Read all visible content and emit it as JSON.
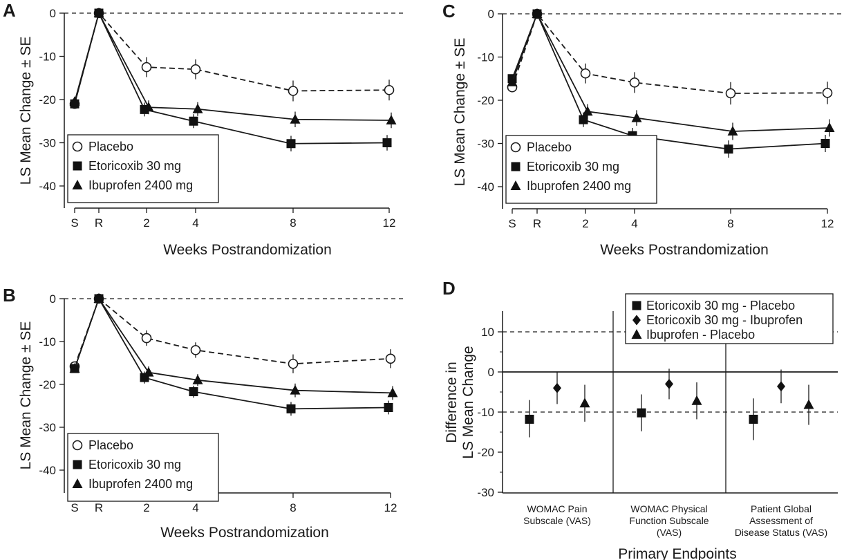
{
  "chart_data": [
    {
      "panel": "A",
      "type": "line",
      "ylabel": "LS Mean Change ± SE",
      "xlabel": "Weeks Postrandomization",
      "ylim": [
        -45,
        0
      ],
      "yticks": [
        0,
        -10,
        -20,
        -30,
        -40
      ],
      "xticks": [
        "S",
        "R",
        "2",
        "4",
        "8",
        "12"
      ],
      "reference_line": 0,
      "legend_position": "bottom-left",
      "series": [
        {
          "name": "Placebo",
          "marker": "open-circle",
          "dash": "dashed",
          "x": [
            "S",
            "R",
            "2",
            "4",
            "8",
            "12"
          ],
          "values": [
            -21,
            0,
            -12.5,
            -13,
            -18,
            -17.8
          ],
          "se": [
            0,
            0,
            2.3,
            2.3,
            2.4,
            2.4
          ]
        },
        {
          "name": "Etoricoxib 30 mg",
          "marker": "square",
          "dash": "solid",
          "x": [
            "S",
            "R",
            "2",
            "4",
            "8",
            "12"
          ],
          "values": [
            -21,
            0,
            -22.3,
            -25,
            -30.2,
            -30
          ],
          "se": [
            0,
            0,
            1.6,
            1.6,
            1.8,
            1.8
          ]
        },
        {
          "name": "Ibuprofen 2400 mg",
          "marker": "triangle",
          "dash": "solid",
          "x": [
            "S",
            "R",
            "2",
            "4",
            "8",
            "12"
          ],
          "values": [
            -20.5,
            0,
            -21.8,
            -22.2,
            -24.6,
            -24.8
          ],
          "se": [
            0,
            0,
            1.6,
            1.6,
            1.8,
            1.8
          ]
        }
      ]
    },
    {
      "panel": "B",
      "type": "line",
      "ylabel": "LS Mean Change ± SE",
      "xlabel": "Weeks Postrandomization",
      "ylim": [
        -45,
        0
      ],
      "yticks": [
        0,
        -10,
        -20,
        -30,
        -40
      ],
      "xticks": [
        "S",
        "R",
        "2",
        "4",
        "8",
        "12"
      ],
      "reference_line": 0,
      "legend_position": "bottom-left",
      "series": [
        {
          "name": "Placebo",
          "marker": "open-circle",
          "dash": "dashed",
          "x": [
            "S",
            "R",
            "2",
            "4",
            "8",
            "12"
          ],
          "values": [
            -15.8,
            0,
            -9.2,
            -12,
            -15.2,
            -14
          ],
          "se": [
            0,
            0,
            1.8,
            1.8,
            2.2,
            2.2
          ]
        },
        {
          "name": "Etoricoxib 30 mg",
          "marker": "square",
          "dash": "solid",
          "x": [
            "S",
            "R",
            "2",
            "4",
            "8",
            "12"
          ],
          "values": [
            -16.3,
            0,
            -18.4,
            -21.7,
            -25.7,
            -25.4
          ],
          "se": [
            0,
            0,
            1.4,
            1.4,
            1.6,
            1.6
          ]
        },
        {
          "name": "Ibuprofen 2400 mg",
          "marker": "triangle",
          "dash": "solid",
          "x": [
            "S",
            "R",
            "2",
            "4",
            "8",
            "12"
          ],
          "values": [
            -16.3,
            0,
            -17.2,
            -19,
            -21.4,
            -22
          ],
          "se": [
            0,
            0,
            1.4,
            1.4,
            1.6,
            1.6
          ]
        }
      ]
    },
    {
      "panel": "C",
      "type": "line",
      "ylabel": "LS Mean Change ± SE",
      "xlabel": "Weeks Postrandomization",
      "ylim": [
        -45,
        0
      ],
      "yticks": [
        0,
        -10,
        -20,
        -30,
        -40
      ],
      "xticks": [
        "S",
        "R",
        "2",
        "4",
        "8",
        "12"
      ],
      "reference_line": 0,
      "legend_position": "bottom-left",
      "series": [
        {
          "name": "Placebo",
          "marker": "open-circle",
          "dash": "dashed",
          "x": [
            "S",
            "R",
            "2",
            "4",
            "8",
            "12"
          ],
          "values": [
            -17,
            0,
            -13.8,
            -15.9,
            -18.4,
            -18.3
          ],
          "se": [
            0,
            0,
            2.3,
            2.4,
            2.6,
            2.6
          ]
        },
        {
          "name": "Etoricoxib 30 mg",
          "marker": "square",
          "dash": "solid",
          "x": [
            "S",
            "R",
            "2",
            "4",
            "8",
            "12"
          ],
          "values": [
            -15,
            0,
            -24.5,
            -28.2,
            -31.3,
            -30
          ],
          "se": [
            0,
            0,
            1.7,
            1.8,
            2.0,
            2.0
          ]
        },
        {
          "name": "Ibuprofen 2400 mg",
          "marker": "triangle",
          "dash": "solid",
          "x": [
            "S",
            "R",
            "2",
            "4",
            "8",
            "12"
          ],
          "values": [
            -15.8,
            0,
            -22.6,
            -24.1,
            -27.2,
            -26.4
          ],
          "se": [
            0,
            0,
            1.7,
            1.8,
            2.0,
            2.0
          ]
        }
      ]
    },
    {
      "panel": "D",
      "type": "scatter",
      "ylabel": "Difference in LS Mean Change",
      "xlabel": "Primary Endpoints",
      "ylim": [
        -30,
        15
      ],
      "yticks": [
        10,
        0,
        -10,
        -20,
        -30
      ],
      "reference_lines": {
        "solid": [
          0
        ],
        "dashed": [
          10,
          -10
        ]
      },
      "legend_position": "top-right",
      "categories": [
        "WOMAC Pain Subscale (VAS)",
        "WOMAC Physical Function Subscale (VAS)",
        "Patient Global Assessment of Disease Status (VAS)"
      ],
      "category_lines": [
        [
          "WOMAC Pain",
          "Subscale (VAS)"
        ],
        [
          "WOMAC Physical",
          "Function Subscale",
          "(VAS)"
        ],
        [
          "Patient Global",
          "Assessment of",
          "Disease Status (VAS)"
        ]
      ],
      "series": [
        {
          "name": "Etoricoxib 30 mg - Placebo",
          "marker": "square",
          "values": [
            -11.8,
            -10.2,
            -11.8
          ],
          "ci_low": [
            -16.3,
            -14.8,
            -17
          ],
          "ci_high": [
            -7,
            -5.6,
            -6.6
          ]
        },
        {
          "name": "Etoricoxib 30 mg - Ibuprofen",
          "marker": "diamond",
          "values": [
            -4,
            -3,
            -3.6
          ],
          "ci_low": [
            -8,
            -6.8,
            -7.8
          ],
          "ci_high": [
            0,
            0.8,
            0.6
          ]
        },
        {
          "name": "Ibuprofen - Placebo",
          "marker": "triangle",
          "values": [
            -7.8,
            -7.2,
            -8.2
          ],
          "ci_low": [
            -12.4,
            -11.8,
            -13.2
          ],
          "ci_high": [
            -3.2,
            -2.6,
            -3.2
          ]
        }
      ]
    }
  ]
}
